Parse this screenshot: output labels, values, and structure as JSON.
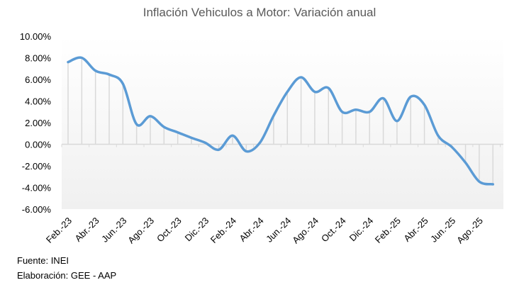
{
  "chart_data": {
    "type": "line",
    "title": "Inflación Vehiculos a Motor: Variación anual",
    "xlabel": "",
    "ylabel": "",
    "ylim": [
      -6,
      10
    ],
    "yticks": [
      "10.00%",
      "8.00%",
      "6.00%",
      "4.00%",
      "2.00%",
      "0.00%",
      "-2.00%",
      "-4.00%",
      "-6.00%"
    ],
    "ytick_values": [
      10,
      8,
      6,
      4,
      2,
      0,
      -2,
      -4,
      -6
    ],
    "x": [
      "Feb.-23",
      "Mar.-23",
      "Abr.-23",
      "May.-23",
      "Jun.-23",
      "Jul.-23",
      "Ago.-23",
      "Sep.-23",
      "Oct.-23",
      "Nov.-23",
      "Dic.-23",
      "Ene.-24",
      "Feb.-24",
      "Mar.-24",
      "Abr.-24",
      "May.-24",
      "Jun.-24",
      "Jul.-24",
      "Ago.-24",
      "Sep.-24",
      "Oct.-24",
      "Nov.-24",
      "Dic.-24",
      "Ene.-25",
      "Feb.-25",
      "Mar.-25",
      "Abr.-25",
      "May.-25",
      "Jun.-25",
      "Jul.-25",
      "Ago.-25",
      "Sep.-25"
    ],
    "xtick_labels": [
      "Feb.-23",
      "Abr.-23",
      "Jun.-23",
      "Ago.-23",
      "Oct.-23",
      "Dic.-23",
      "Feb.-24",
      "Abr.-24",
      "Jun.-24",
      "Ago.-24",
      "Oct.-24",
      "Dic.-24",
      "Feb.-25",
      "Abr.-25",
      "Jun.-25",
      "Ago.-25"
    ],
    "series": [
      {
        "name": "Variación anual",
        "color": "#5B9BD5",
        "values": [
          7.6,
          8.0,
          6.8,
          6.45,
          5.6,
          1.85,
          2.6,
          1.6,
          1.1,
          0.6,
          0.15,
          -0.5,
          0.8,
          -0.65,
          0.15,
          2.65,
          4.85,
          6.2,
          4.85,
          5.2,
          3.0,
          3.2,
          3.0,
          4.25,
          2.15,
          4.4,
          3.65,
          0.8,
          -0.25,
          -1.7,
          -3.45,
          -3.7
        ]
      }
    ],
    "grid": false,
    "legend": "none"
  },
  "footer": {
    "source": "Fuente: INEI",
    "credit": "Elaboración: GEE - AAP"
  }
}
